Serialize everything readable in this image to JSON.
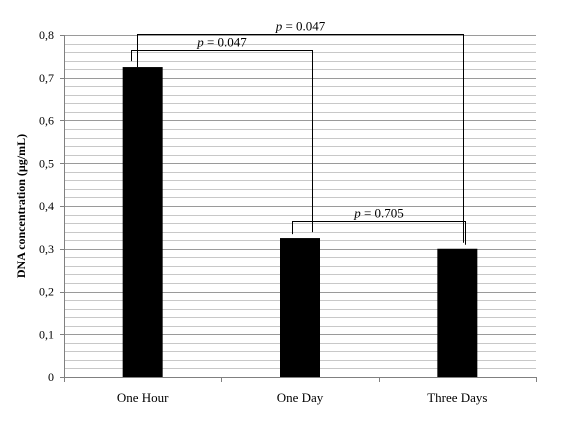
{
  "chart_data": {
    "type": "bar",
    "categories": [
      "One Hour",
      "One Day",
      "Three Days"
    ],
    "values": [
      0.725,
      0.325,
      0.3
    ],
    "title": "",
    "xlabel": "",
    "ylabel": "DNA concentration (µg/mL)",
    "ylim": [
      0,
      0.8
    ],
    "y_ticks": [
      "0",
      "0,1",
      "0,2",
      "0,3",
      "0,4",
      "0,5",
      "0,6",
      "0,7",
      "0,8"
    ],
    "grid": true,
    "legend": "none",
    "bar_color": "#000000",
    "annotations": [
      {
        "from": "One Hour",
        "to": "Three Days",
        "p_label": "p",
        "p_value_text": " = 0.047"
      },
      {
        "from": "One Hour",
        "to": "One Day",
        "p_label": "p",
        "p_value_text": " = 0.047"
      },
      {
        "from": "One Day",
        "to": "Three Days",
        "p_label": "p",
        "p_value_text": " = 0.705"
      }
    ]
  }
}
